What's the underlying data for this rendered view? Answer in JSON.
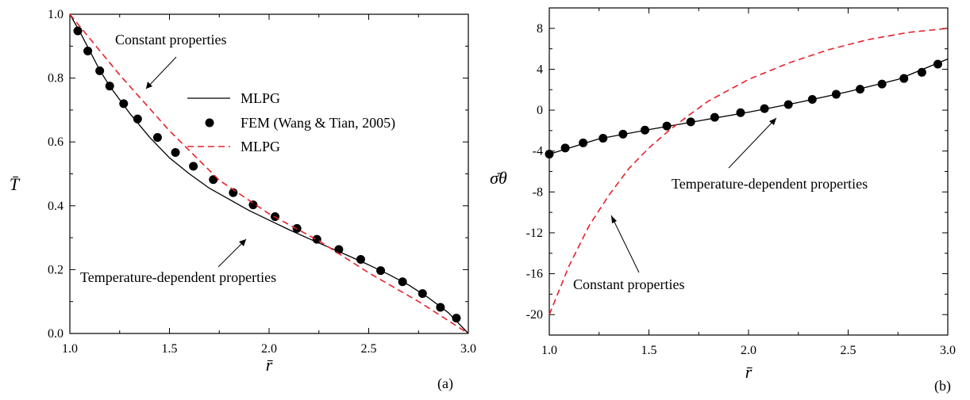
{
  "chart_data": [
    {
      "panel": "(a)",
      "type": "line",
      "xlabel": "r̄",
      "ylabel": "T̄",
      "xlim": [
        1.0,
        3.0
      ],
      "ylim": [
        0.0,
        1.0
      ],
      "x_ticks": [
        "1.0",
        "1.5",
        "2.0",
        "2.5",
        "3.0"
      ],
      "y_ticks": [
        "0.0",
        "0.2",
        "0.4",
        "0.6",
        "0.8",
        "1.0"
      ],
      "legend": {
        "placement": "upper-right",
        "entries": [
          {
            "label": "MLPG",
            "style": "solid-black"
          },
          {
            "label": "FEM (Wang & Tian, 2005)",
            "style": "black-dot"
          },
          {
            "label": "MLPG",
            "style": "dashed-red"
          }
        ]
      },
      "annotations": [
        {
          "text": "Constant properties",
          "target": "dashed series"
        },
        {
          "text": "Temperature-dependent properties",
          "target": "solid series"
        }
      ],
      "series": [
        {
          "style": "solid-black",
          "x": [
            1.0,
            1.05,
            1.1,
            1.15,
            1.2,
            1.3,
            1.4,
            1.5,
            1.6,
            1.7,
            1.8,
            1.9,
            2.0,
            2.1,
            2.2,
            2.3,
            2.4,
            2.5,
            2.6,
            2.7,
            2.8,
            2.9,
            3.0
          ],
          "y": [
            1.0,
            0.945,
            0.885,
            0.825,
            0.775,
            0.69,
            0.615,
            0.55,
            0.5,
            0.455,
            0.42,
            0.385,
            0.355,
            0.325,
            0.297,
            0.27,
            0.243,
            0.215,
            0.185,
            0.152,
            0.112,
            0.065,
            0.0
          ]
        },
        {
          "style": "black-dot",
          "x": [
            1.04,
            1.09,
            1.15,
            1.2,
            1.27,
            1.34,
            1.44,
            1.53,
            1.62,
            1.72,
            1.82,
            1.92,
            2.03,
            2.14,
            2.24,
            2.35,
            2.46,
            2.56,
            2.67,
            2.77,
            2.86,
            2.94
          ],
          "y": [
            0.948,
            0.885,
            0.823,
            0.775,
            0.72,
            0.672,
            0.614,
            0.567,
            0.524,
            0.482,
            0.441,
            0.403,
            0.366,
            0.329,
            0.295,
            0.263,
            0.232,
            0.197,
            0.162,
            0.125,
            0.082,
            0.048
          ]
        },
        {
          "style": "dashed-red",
          "x": [
            1.0,
            1.25,
            1.5,
            1.75,
            2.0,
            2.25,
            2.5,
            2.75,
            3.0
          ],
          "y": [
            1.0,
            0.81,
            0.635,
            0.48,
            0.375,
            0.29,
            0.19,
            0.1,
            0.0
          ]
        }
      ],
      "panel_tag": "(a)"
    },
    {
      "panel": "(b)",
      "type": "line",
      "xlabel": "r̄",
      "ylabel": "σ̄θ",
      "xlim": [
        1.0,
        3.0
      ],
      "ylim": [
        -22,
        10
      ],
      "x_ticks": [
        "1.0",
        "1.5",
        "2.0",
        "2.5",
        "3.0"
      ],
      "y_ticks": [
        "-20",
        "-16",
        "-12",
        "-8",
        "-4",
        "0",
        "4",
        "8"
      ],
      "annotations": [
        {
          "text": "Temperature-dependent properties",
          "target": "solid series"
        },
        {
          "text": "Constant properties",
          "target": "dashed series"
        }
      ],
      "series": [
        {
          "style": "solid-black",
          "x": [
            1.0,
            1.25,
            1.5,
            1.75,
            2.0,
            2.25,
            2.5,
            2.75,
            3.0
          ],
          "y": [
            -4.3,
            -2.8,
            -1.9,
            -1.05,
            -0.2,
            0.75,
            1.8,
            3.0,
            5.0
          ]
        },
        {
          "style": "black-dot",
          "x": [
            1.0,
            1.08,
            1.17,
            1.27,
            1.37,
            1.48,
            1.59,
            1.71,
            1.83,
            1.96,
            2.08,
            2.2,
            2.32,
            2.44,
            2.56,
            2.67,
            2.78,
            2.87,
            2.95
          ],
          "y": [
            -4.3,
            -3.7,
            -3.2,
            -2.75,
            -2.35,
            -1.95,
            -1.55,
            -1.15,
            -0.7,
            -0.25,
            0.15,
            0.55,
            1.05,
            1.55,
            2.05,
            2.55,
            3.1,
            3.7,
            4.5
          ]
        },
        {
          "style": "dashed-red",
          "x": [
            1.0,
            1.1,
            1.2,
            1.3,
            1.4,
            1.5,
            1.6,
            1.7,
            1.8,
            2.0,
            2.2,
            2.4,
            2.6,
            2.8,
            3.0
          ],
          "y": [
            -20.0,
            -15.2,
            -11.3,
            -8.3,
            -5.7,
            -3.7,
            -2.0,
            -0.5,
            0.9,
            3.0,
            4.6,
            5.9,
            6.9,
            7.6,
            8.0
          ]
        }
      ],
      "panel_tag": "(b)"
    }
  ]
}
